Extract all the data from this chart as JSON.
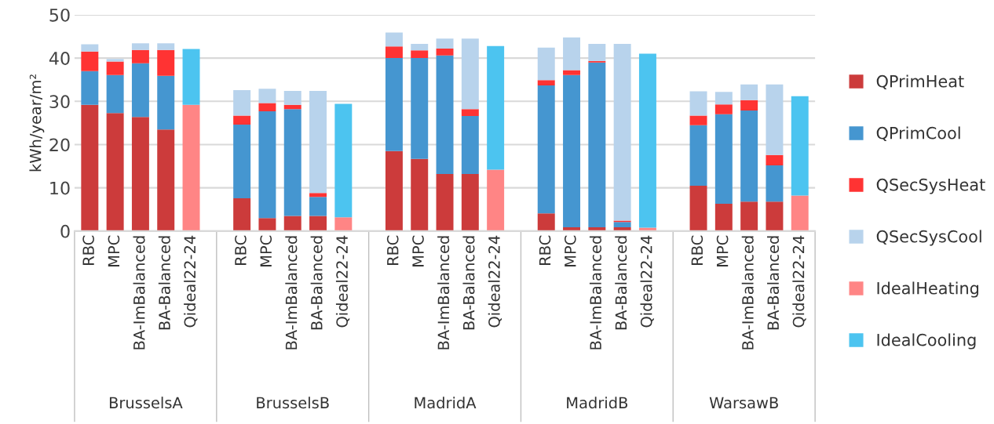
{
  "chart_data": {
    "type": "bar",
    "stacked": true,
    "ylabel": "kWh/year/m²",
    "categories": [
      "RBC",
      "MPC",
      "BA-ImBalanced",
      "BA-Balanced",
      "Qideal22-24",
      null,
      "RBC",
      "MPC",
      "BA-ImBalanced",
      "BA-Balanced",
      "Qideal22-24",
      null,
      "RBC",
      "MPC",
      "BA-ImBalanced",
      "BA-Balanced",
      "Qideal22-24",
      null,
      "RBC",
      "MPC",
      "BA-ImBalanced",
      "BA-Balanced",
      "Qideal22-24",
      null,
      "RBC",
      "MPC",
      "BA-ImBalanced",
      "BA-Balanced",
      "Qideal22-24"
    ],
    "series": [
      {
        "name": "QPrimHeat",
        "color": "#cc3b3b",
        "values": [
          29.2,
          27.3,
          26.4,
          23.5,
          null,
          null,
          7.6,
          3.0,
          3.5,
          3.5,
          null,
          null,
          18.5,
          16.7,
          13.2,
          13.2,
          null,
          null,
          4.1,
          0.9,
          0.9,
          0.9,
          null,
          null,
          10.5,
          6.3,
          6.8,
          6.8,
          null
        ]
      },
      {
        "name": "QPrimCool",
        "color": "#4596d0",
        "values": [
          7.8,
          8.8,
          12.4,
          12.4,
          null,
          null,
          17.0,
          24.7,
          24.7,
          4.4,
          null,
          null,
          21.5,
          23.3,
          27.4,
          13.4,
          null,
          null,
          29.6,
          35.2,
          38.1,
          1.2,
          null,
          null,
          14.0,
          20.7,
          21.1,
          8.4,
          null
        ]
      },
      {
        "name": "QSecSysHeat",
        "color": "#ff3333",
        "values": [
          4.5,
          3.1,
          3.1,
          6.0,
          null,
          null,
          2.1,
          1.9,
          1.0,
          0.9,
          null,
          null,
          2.7,
          1.8,
          1.6,
          1.6,
          null,
          null,
          1.2,
          1.1,
          0.3,
          0.3,
          null,
          null,
          2.2,
          2.3,
          2.4,
          2.4,
          null
        ]
      },
      {
        "name": "QSecSysCool",
        "color": "#b8d3ec",
        "values": [
          1.7,
          0.6,
          1.5,
          1.5,
          null,
          null,
          5.9,
          3.3,
          3.2,
          23.6,
          null,
          null,
          3.2,
          1.5,
          2.3,
          16.3,
          null,
          null,
          7.5,
          7.6,
          4.0,
          40.9,
          null,
          null,
          5.6,
          2.9,
          3.6,
          16.3,
          null
        ]
      },
      {
        "name": "IdealHeating",
        "color": "#ff8585",
        "values": [
          null,
          null,
          null,
          null,
          29.2,
          null,
          null,
          null,
          null,
          null,
          3.2,
          null,
          null,
          null,
          null,
          null,
          14.2,
          null,
          null,
          null,
          null,
          null,
          0.8,
          null,
          null,
          null,
          null,
          null,
          8.2
        ]
      },
      {
        "name": "IdealCooling",
        "color": "#4cc4f0",
        "values": [
          null,
          null,
          null,
          null,
          12.9,
          null,
          null,
          null,
          null,
          null,
          26.2,
          null,
          null,
          null,
          null,
          null,
          28.6,
          null,
          null,
          null,
          null,
          null,
          40.2,
          null,
          null,
          null,
          null,
          null,
          23.0
        ]
      }
    ],
    "annotations": [
      "BrusselsA",
      "BrusselsB",
      "MadridA",
      "MadridB",
      "WarsawB"
    ],
    "ylim": [
      0,
      50
    ],
    "yticks": [
      0,
      10,
      20,
      30,
      40,
      50
    ],
    "grid": "y",
    "legend": "right"
  }
}
